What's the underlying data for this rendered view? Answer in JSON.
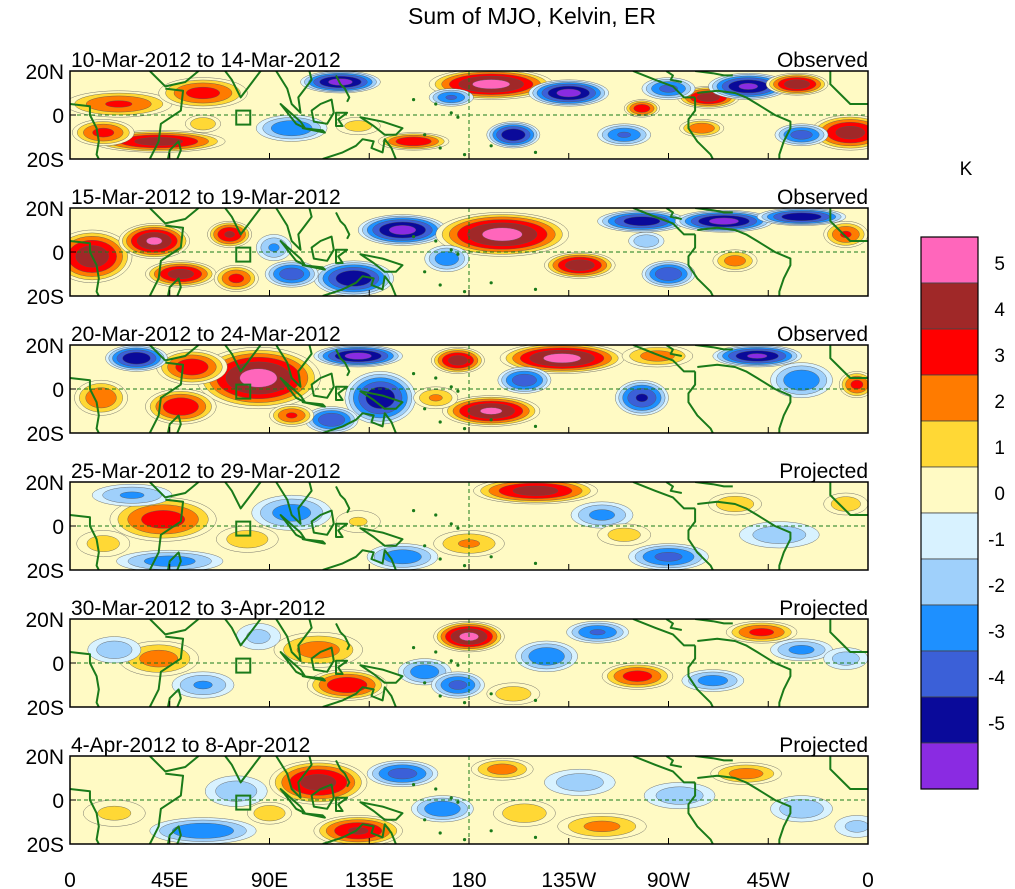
{
  "title": "Sum of MJO, Kelvin, ER",
  "chart_data": {
    "type": "heatmap",
    "title": "Sum of MJO, Kelvin, ER",
    "units": "K",
    "x_ticks": [
      "0",
      "45E",
      "90E",
      "135E",
      "180",
      "135W",
      "90W",
      "45W",
      "0"
    ],
    "y_ticks": [
      "20N",
      "0",
      "20S"
    ],
    "colorbar": {
      "labels": [
        "5",
        "4",
        "3",
        "2",
        "1",
        "0",
        "-1",
        "-2",
        "-3",
        "-4",
        "-5"
      ],
      "colors": [
        "#ff66bb",
        "#a02828",
        "#ff0000",
        "#ff7b00",
        "#ffd835",
        "#fffac4",
        "#d8f2ff",
        "#9fd0fb",
        "#1e90ff",
        "#3b60d8",
        "#0a0a9a",
        "#8a2be2"
      ]
    },
    "panels": [
      {
        "period": "10-Mar-2012 to 14-Mar-2012",
        "status": "Observed",
        "blobs": [
          [
            40,
            -12,
            30,
            5,
            4.6
          ],
          [
            22,
            5,
            24,
            6,
            3.2
          ],
          [
            60,
            10,
            20,
            7,
            3.5
          ],
          [
            122,
            15,
            18,
            5,
            -5.5
          ],
          [
            190,
            14,
            28,
            7,
            5.5
          ],
          [
            225,
            10,
            18,
            6,
            -5.5
          ],
          [
            258,
            3,
            8,
            4,
            3.8
          ],
          [
            288,
            8,
            14,
            5,
            4.6
          ],
          [
            306,
            13,
            18,
            6,
            -5.3
          ],
          [
            328,
            14,
            14,
            5,
            4.8
          ],
          [
            352,
            -8,
            18,
            8,
            4.6
          ],
          [
            15,
            -8,
            14,
            6,
            3.4
          ],
          [
            155,
            -12,
            16,
            4,
            4.0
          ],
          [
            200,
            -9,
            12,
            6,
            -5.0
          ],
          [
            250,
            -9,
            12,
            5,
            -3.2
          ],
          [
            285,
            -6,
            10,
            4,
            3.0
          ],
          [
            330,
            -9,
            12,
            5,
            -3.6
          ],
          [
            100,
            -6,
            16,
            6,
            -3.0
          ],
          [
            172,
            8,
            10,
            4,
            -3.2
          ],
          [
            270,
            12,
            12,
            5,
            -3.4
          ],
          [
            60,
            -4,
            8,
            4,
            2.0
          ],
          [
            130,
            -5,
            10,
            4,
            1.6
          ]
        ]
      },
      {
        "period": "15-Mar-2012 to 19-Mar-2012",
        "status": "Observed",
        "blobs": [
          [
            10,
            -2,
            18,
            12,
            4.8
          ],
          [
            38,
            5,
            16,
            8,
            5.2
          ],
          [
            50,
            -10,
            16,
            6,
            4.6
          ],
          [
            72,
            8,
            10,
            6,
            4.2
          ],
          [
            75,
            -12,
            10,
            6,
            3.4
          ],
          [
            150,
            10,
            20,
            7,
            -5.5
          ],
          [
            195,
            8,
            30,
            10,
            5.5
          ],
          [
            230,
            -6,
            16,
            6,
            4.8
          ],
          [
            258,
            14,
            20,
            5,
            -4.8
          ],
          [
            295,
            14,
            22,
            5,
            -5.5
          ],
          [
            330,
            16,
            20,
            4,
            -5.0
          ],
          [
            128,
            -12,
            18,
            8,
            -5.0
          ],
          [
            100,
            -10,
            12,
            6,
            -3.8
          ],
          [
            270,
            -10,
            12,
            6,
            -4.0
          ],
          [
            300,
            -4,
            10,
            5,
            2.6
          ],
          [
            170,
            -3,
            10,
            6,
            -2.8
          ],
          [
            92,
            2,
            8,
            6,
            -2.2
          ],
          [
            350,
            8,
            10,
            6,
            3.2
          ],
          [
            260,
            5,
            8,
            4,
            -2.0
          ]
        ]
      },
      {
        "period": "20-Mar-2012 to 24-Mar-2012",
        "status": "Observed",
        "blobs": [
          [
            85,
            5,
            28,
            14,
            5.5
          ],
          [
            55,
            10,
            16,
            8,
            3.8
          ],
          [
            50,
            -8,
            16,
            8,
            4.0
          ],
          [
            30,
            14,
            14,
            6,
            -5.0
          ],
          [
            14,
            -4,
            12,
            8,
            3.0
          ],
          [
            130,
            15,
            20,
            5,
            -5.5
          ],
          [
            140,
            -4,
            16,
            12,
            -4.8
          ],
          [
            118,
            -14,
            12,
            6,
            -4.0
          ],
          [
            175,
            13,
            12,
            6,
            4.6
          ],
          [
            190,
            -10,
            22,
            7,
            5.2
          ],
          [
            222,
            14,
            28,
            7,
            5.5
          ],
          [
            205,
            4,
            12,
            6,
            -3.8
          ],
          [
            258,
            -4,
            12,
            8,
            -4.2
          ],
          [
            265,
            15,
            16,
            5,
            2.6
          ],
          [
            310,
            15,
            20,
            5,
            -5.2
          ],
          [
            330,
            4,
            14,
            8,
            -3.0
          ],
          [
            355,
            2,
            8,
            6,
            3.4
          ],
          [
            100,
            -12,
            10,
            5,
            3.2
          ],
          [
            165,
            -4,
            10,
            5,
            2.2
          ]
        ]
      },
      {
        "period": "25-Mar-2012 to 29-Mar-2012",
        "status": "Projected",
        "blobs": [
          [
            42,
            3,
            24,
            10,
            3.6
          ],
          [
            45,
            -16,
            24,
            5,
            -2.6
          ],
          [
            28,
            14,
            18,
            5,
            -2.2
          ],
          [
            15,
            -8,
            12,
            6,
            1.6
          ],
          [
            100,
            6,
            18,
            8,
            -2.6
          ],
          [
            80,
            -6,
            14,
            6,
            1.8
          ],
          [
            210,
            16,
            28,
            6,
            4.6
          ],
          [
            180,
            -8,
            16,
            6,
            2.2
          ],
          [
            240,
            5,
            14,
            6,
            -2.4
          ],
          [
            150,
            -14,
            16,
            6,
            -2.8
          ],
          [
            270,
            -14,
            18,
            6,
            -3.4
          ],
          [
            250,
            -4,
            12,
            5,
            1.6
          ],
          [
            300,
            10,
            12,
            5,
            2.0
          ],
          [
            320,
            -4,
            18,
            6,
            -1.8
          ],
          [
            350,
            10,
            10,
            5,
            1.8
          ],
          [
            130,
            2,
            10,
            5,
            1.2
          ]
        ]
      },
      {
        "period": "30-Mar-2012 to 3-Apr-2012",
        "status": "Projected",
        "blobs": [
          [
            40,
            2,
            18,
            8,
            2.6
          ],
          [
            20,
            6,
            12,
            6,
            -1.8
          ],
          [
            60,
            -10,
            14,
            6,
            -2.2
          ],
          [
            112,
            6,
            20,
            8,
            2.6
          ],
          [
            125,
            -10,
            18,
            7,
            4.0
          ],
          [
            180,
            12,
            16,
            7,
            5.4
          ],
          [
            160,
            -4,
            12,
            6,
            -2.8
          ],
          [
            175,
            -10,
            12,
            6,
            -3.4
          ],
          [
            215,
            3,
            14,
            7,
            -3.0
          ],
          [
            238,
            14,
            14,
            5,
            -3.2
          ],
          [
            256,
            -6,
            16,
            6,
            3.6
          ],
          [
            290,
            -8,
            14,
            5,
            -2.6
          ],
          [
            312,
            14,
            16,
            5,
            3.4
          ],
          [
            330,
            6,
            14,
            5,
            -2.4
          ],
          [
            350,
            2,
            10,
            5,
            -1.6
          ],
          [
            85,
            12,
            10,
            6,
            -1.4
          ],
          [
            200,
            -14,
            12,
            5,
            1.8
          ]
        ]
      },
      {
        "period": "4-Apr-2012 to 8-Apr-2012",
        "status": "Projected",
        "blobs": [
          [
            112,
            8,
            22,
            10,
            4.6
          ],
          [
            130,
            -14,
            20,
            7,
            4.2
          ],
          [
            150,
            12,
            16,
            6,
            -3.6
          ],
          [
            168,
            -4,
            14,
            6,
            -3.0
          ],
          [
            195,
            14,
            14,
            5,
            2.6
          ],
          [
            205,
            -6,
            14,
            6,
            2.0
          ],
          [
            230,
            8,
            16,
            6,
            -1.8
          ],
          [
            240,
            -12,
            20,
            6,
            2.4
          ],
          [
            275,
            2,
            16,
            6,
            -1.8
          ],
          [
            305,
            12,
            16,
            5,
            2.6
          ],
          [
            330,
            -4,
            14,
            6,
            -2.0
          ],
          [
            60,
            -14,
            24,
            6,
            -3.0
          ],
          [
            75,
            4,
            14,
            7,
            -1.8
          ],
          [
            20,
            -6,
            14,
            6,
            1.4
          ],
          [
            90,
            -6,
            10,
            5,
            2.0
          ],
          [
            355,
            -12,
            10,
            5,
            -1.4
          ]
        ]
      }
    ]
  }
}
